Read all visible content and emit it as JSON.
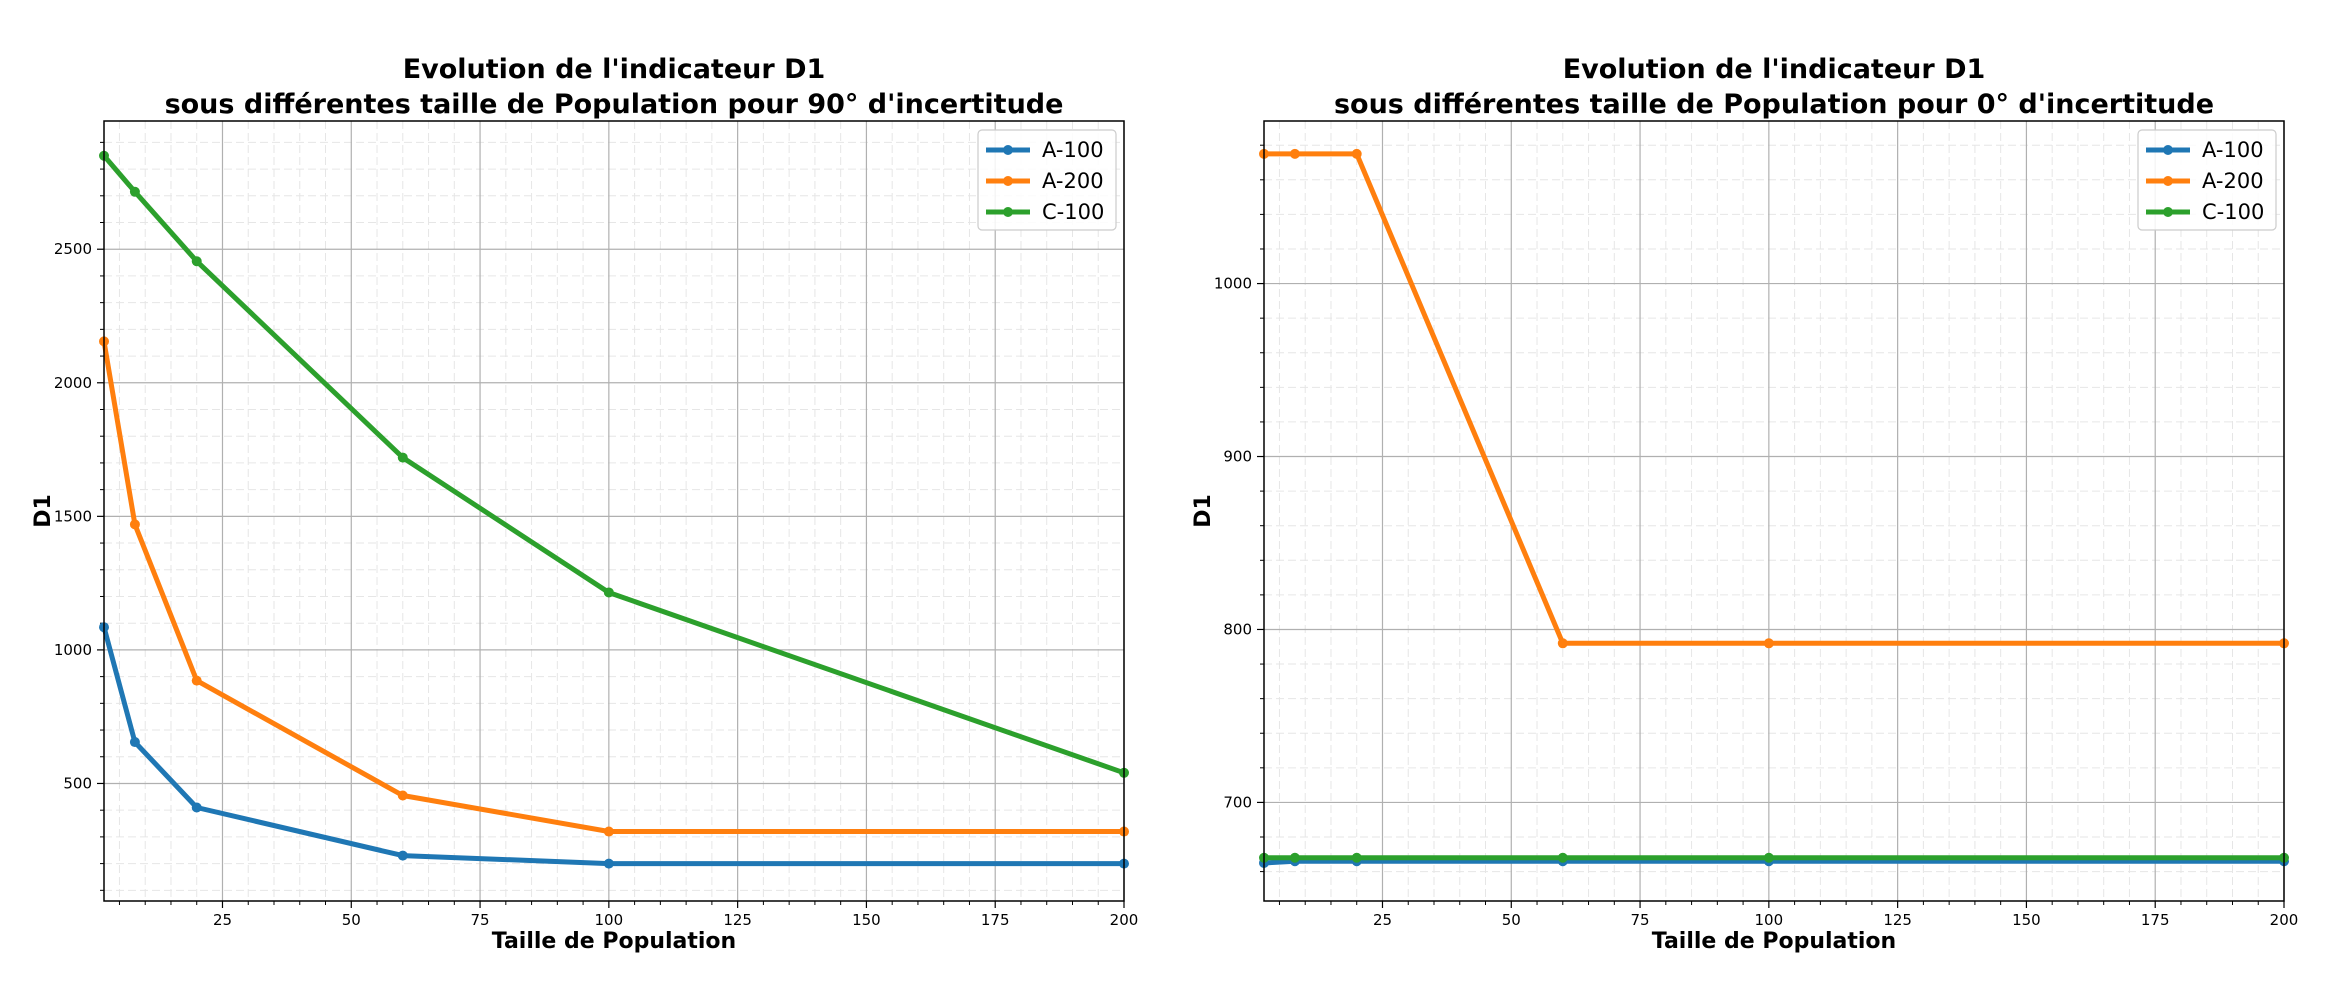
{
  "chart_data": [
    {
      "type": "line",
      "title": [
        "Evolution de l'indicateur  D1",
        "sous différentes taille de Population pour 90° d'incertitude"
      ],
      "xlabel": "Taille de Population",
      "ylabel": "D1",
      "xlim": [
        2,
        200
      ],
      "ylim": [
        60,
        2980
      ],
      "xticks": [
        25,
        50,
        75,
        100,
        125,
        150,
        175,
        200
      ],
      "yticks": [
        500,
        1000,
        1500,
        2000,
        2500
      ],
      "grid": true,
      "legend_position": "top-right",
      "x": [
        2,
        8,
        20,
        60,
        100,
        200
      ],
      "series": [
        {
          "name": "A-100",
          "color": "#1f77b4",
          "values": [
            1085,
            655,
            410,
            230,
            200,
            200
          ]
        },
        {
          "name": "A-200",
          "color": "#ff7f0e",
          "values": [
            2155,
            1470,
            885,
            455,
            320,
            320
          ]
        },
        {
          "name": "C-100",
          "color": "#2ca02c",
          "values": [
            2850,
            2715,
            2455,
            1720,
            1215,
            540
          ]
        }
      ]
    },
    {
      "type": "line",
      "title": [
        "Evolution de l'indicateur  D1",
        "sous différentes taille de Population pour 0° d'incertitude"
      ],
      "xlabel": "Taille de Population",
      "ylabel": "D1",
      "xlim": [
        2,
        200
      ],
      "ylim": [
        643,
        1094
      ],
      "xticks": [
        25,
        50,
        75,
        100,
        125,
        150,
        175,
        200
      ],
      "yticks": [
        700,
        800,
        900,
        1000
      ],
      "grid": true,
      "legend_position": "top-right",
      "x": [
        2,
        8,
        20,
        60,
        100,
        200
      ],
      "series": [
        {
          "name": "A-100",
          "color": "#1f77b4",
          "values": [
            665,
            666,
            666,
            666,
            666,
            666
          ]
        },
        {
          "name": "A-200",
          "color": "#ff7f0e",
          "values": [
            1075,
            1075,
            1075,
            792,
            792,
            792
          ]
        },
        {
          "name": "C-100",
          "color": "#2ca02c",
          "values": [
            668,
            668,
            668,
            668,
            668,
            668
          ]
        }
      ]
    }
  ]
}
